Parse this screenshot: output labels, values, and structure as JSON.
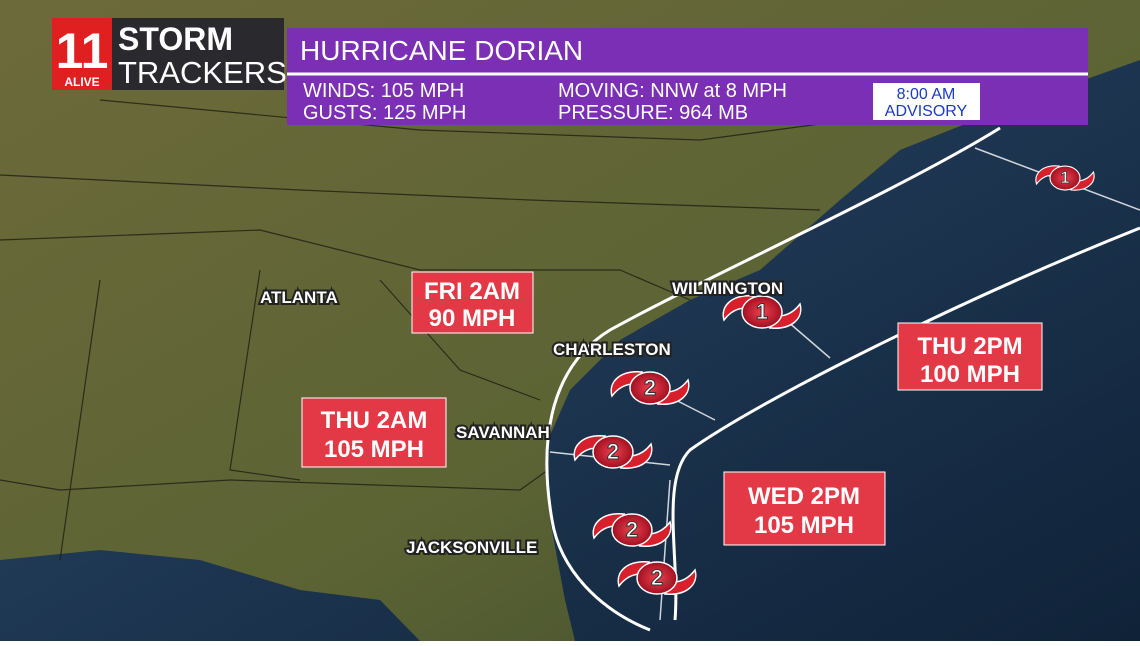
{
  "logo": {
    "number": "11",
    "station": "ALIVE",
    "line1": "STORM",
    "line2": "TRACKERS"
  },
  "header": {
    "title": "HURRICANE DORIAN",
    "winds": "WINDS: 105 MPH",
    "gusts": "GUSTS: 125 MPH",
    "moving": "MOVING: NNW at 8 MPH",
    "pressure": "PRESSURE: 964 MB",
    "advisory_time": "8:00 AM",
    "advisory": "ADVISORY"
  },
  "cities": [
    "ATLANTA",
    "WILMINGTON",
    "CHARLESTON",
    "SAVANNAH",
    "JACKSONVILLE"
  ],
  "forecasts": [
    {
      "time": "FRI 2AM",
      "wind": "90 MPH"
    },
    {
      "time": "THU 2AM",
      "wind": "105 MPH"
    },
    {
      "time": "THU 2PM",
      "wind": "100 MPH"
    },
    {
      "time": "WED 2PM",
      "wind": "105 MPH"
    }
  ],
  "storm_icons": [
    "1",
    "1",
    "2",
    "2",
    "2",
    "2"
  ]
}
